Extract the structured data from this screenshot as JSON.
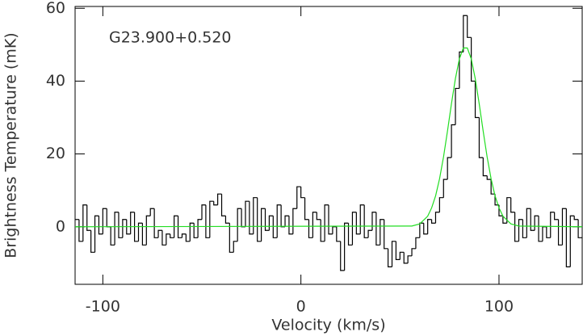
{
  "chart_data": {
    "type": "step",
    "title": "G23.900+0.520",
    "x_label": "Velocity (km/s)",
    "y_label": "Brightness Temperature (mK)",
    "xlim": [
      -114,
      142
    ],
    "ylim": [
      -15.8,
      60.5
    ],
    "xticks": [
      -100,
      0,
      100
    ],
    "yticks": [
      0,
      20,
      40,
      60
    ],
    "spectrum": {
      "color": "#000000",
      "x": [
        -113,
        -111,
        -109,
        -107,
        -105,
        -103,
        -101,
        -99,
        -97,
        -95,
        -93,
        -91,
        -89,
        -87,
        -85,
        -83,
        -81,
        -79,
        -77,
        -75,
        -73,
        -71,
        -69,
        -67,
        -65,
        -63,
        -61,
        -59,
        -57,
        -55,
        -53,
        -51,
        -49,
        -47,
        -45,
        -43,
        -41,
        -39,
        -37,
        -35,
        -33,
        -31,
        -29,
        -27,
        -25,
        -23,
        -21,
        -19,
        -17,
        -15,
        -13,
        -11,
        -9,
        -7,
        -5,
        -3,
        -1,
        1,
        3,
        5,
        7,
        9,
        11,
        13,
        15,
        17,
        19,
        21,
        23,
        25,
        27,
        29,
        31,
        33,
        35,
        37,
        39,
        41,
        43,
        45,
        47,
        49,
        51,
        53,
        55,
        57,
        59,
        61,
        63,
        65,
        67,
        69,
        71,
        73,
        75,
        77,
        79,
        81,
        83,
        85,
        87,
        89,
        91,
        93,
        95,
        97,
        99,
        101,
        103,
        105,
        107,
        109,
        111,
        113,
        115,
        117,
        119,
        121,
        123,
        125,
        127,
        129,
        131,
        133,
        135,
        137,
        139,
        141
      ],
      "values": [
        2,
        -4,
        6,
        -1,
        -7,
        3,
        -2,
        5,
        0,
        -5,
        4,
        -3,
        2,
        -2,
        4,
        -4,
        1,
        -5,
        3,
        5,
        -3,
        -1,
        -5,
        -2,
        -3,
        3,
        -3,
        -2,
        -4,
        1,
        -3,
        2,
        6,
        -3,
        7,
        6,
        9,
        3,
        1,
        -7,
        -4,
        5,
        0,
        7,
        -2,
        8,
        -4,
        5,
        -1,
        3,
        -3,
        6,
        0,
        3,
        -2,
        5,
        11,
        8,
        2,
        -3,
        4,
        2,
        -4,
        6,
        -2,
        0,
        -4,
        -12,
        1,
        -5,
        4,
        -2,
        6,
        -3,
        -1,
        4,
        -5,
        2,
        -6,
        -11,
        -4,
        -9,
        -7,
        -10,
        -8,
        -6,
        -3,
        1,
        -2,
        2,
        1,
        4,
        8,
        13,
        19,
        28,
        38,
        48,
        58,
        52,
        40,
        30,
        19,
        14,
        13,
        9,
        6,
        3,
        1,
        8,
        4,
        -4,
        2,
        -3,
        5,
        -1,
        3,
        -4,
        0,
        -3,
        4,
        2,
        -5,
        5,
        -11,
        3,
        2,
        -3
      ]
    },
    "fit": {
      "color": "#22dd22",
      "x": [
        -114,
        56,
        60,
        64,
        66,
        68,
        70,
        72,
        74,
        76,
        78,
        80,
        82,
        84,
        86,
        88,
        90,
        92,
        94,
        96,
        98,
        100,
        102,
        106,
        110,
        142
      ],
      "values": [
        0,
        0.2,
        0.8,
        2.9,
        5.2,
        8.5,
        13.2,
        19.2,
        26.3,
        33.8,
        40.7,
        46.1,
        49.1,
        49.1,
        46.1,
        40.7,
        33.8,
        26.3,
        19.2,
        13.2,
        8.5,
        5.2,
        2.9,
        0.8,
        0.2,
        0
      ]
    }
  }
}
